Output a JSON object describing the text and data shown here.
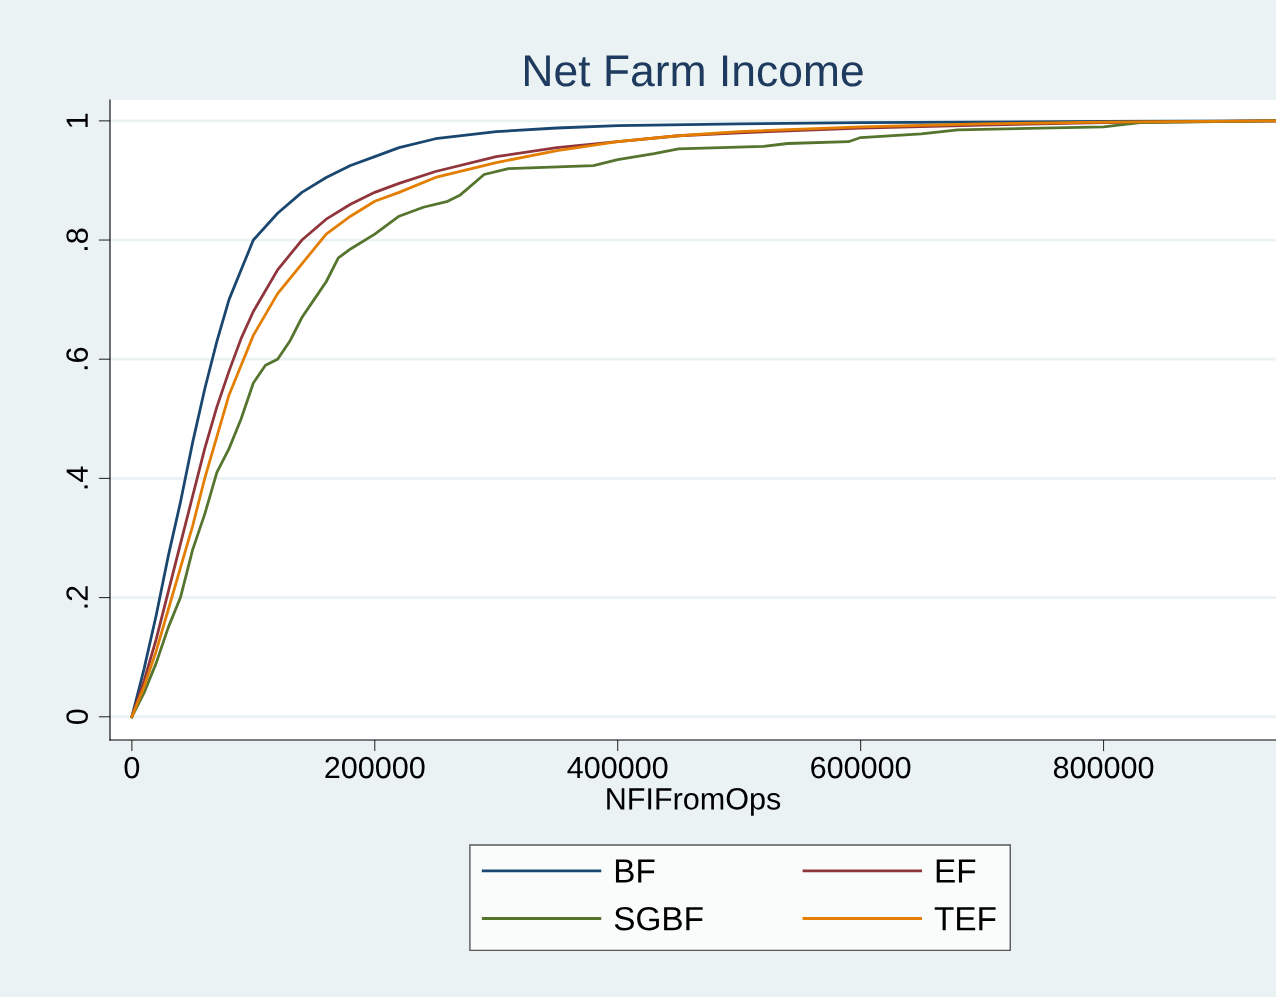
{
  "chart_data": {
    "type": "line",
    "title": "Net Farm Income",
    "xlabel": "NFIFromOps",
    "xlim": [
      -18000,
      942000
    ],
    "ylim": [
      -0.039,
      1.035
    ],
    "xticks": [
      0,
      200000,
      400000,
      600000,
      800000
    ],
    "yticks": [
      {
        "value": 0,
        "label": "0"
      },
      {
        "value": 0.2,
        "label": ".2"
      },
      {
        "value": 0.4,
        "label": ".4"
      },
      {
        "value": 0.6,
        "label": ".6"
      },
      {
        "value": 0.8,
        "label": ".8"
      },
      {
        "value": 1,
        "label": "1"
      }
    ],
    "grid": "y",
    "legend": "bottom",
    "marker": "none",
    "line_style": "solid",
    "series": [
      {
        "name": "BF",
        "color": "#1a476f",
        "x": [
          0,
          10000,
          20000,
          30000,
          40000,
          50000,
          60000,
          70000,
          80000,
          90000,
          100000,
          120000,
          140000,
          160000,
          180000,
          200000,
          220000,
          250000,
          300000,
          350000,
          400000,
          500000,
          600000,
          800000,
          942000
        ],
        "values": [
          0,
          0.08,
          0.17,
          0.27,
          0.36,
          0.46,
          0.55,
          0.63,
          0.7,
          0.75,
          0.8,
          0.845,
          0.88,
          0.905,
          0.925,
          0.94,
          0.955,
          0.97,
          0.982,
          0.988,
          0.992,
          0.995,
          0.997,
          0.999,
          1
        ]
      },
      {
        "name": "EF",
        "color": "#90353b",
        "x": [
          0,
          10000,
          20000,
          30000,
          40000,
          50000,
          60000,
          70000,
          80000,
          90000,
          100000,
          120000,
          140000,
          160000,
          180000,
          200000,
          220000,
          250000,
          300000,
          350000,
          400000,
          450000,
          500000,
          600000,
          700000,
          800000,
          942000
        ],
        "values": [
          0,
          0.06,
          0.13,
          0.21,
          0.29,
          0.37,
          0.45,
          0.52,
          0.58,
          0.635,
          0.68,
          0.75,
          0.8,
          0.835,
          0.86,
          0.88,
          0.895,
          0.915,
          0.94,
          0.955,
          0.965,
          0.975,
          0.98,
          0.988,
          0.993,
          0.997,
          1
        ]
      },
      {
        "name": "SGBF",
        "color": "#55752f",
        "x": [
          0,
          10000,
          20000,
          30000,
          40000,
          50000,
          60000,
          70000,
          80000,
          90000,
          100000,
          110000,
          120000,
          130000,
          140000,
          150000,
          160000,
          170000,
          180000,
          200000,
          220000,
          240000,
          260000,
          270000,
          290000,
          310000,
          380000,
          400000,
          430000,
          450000,
          520000,
          540000,
          590000,
          600000,
          650000,
          680000,
          800000,
          830000,
          942000
        ],
        "values": [
          0,
          0.04,
          0.09,
          0.15,
          0.2,
          0.28,
          0.34,
          0.41,
          0.45,
          0.5,
          0.56,
          0.59,
          0.6,
          0.63,
          0.67,
          0.7,
          0.73,
          0.77,
          0.785,
          0.81,
          0.84,
          0.855,
          0.865,
          0.875,
          0.91,
          0.92,
          0.925,
          0.935,
          0.945,
          0.953,
          0.957,
          0.962,
          0.965,
          0.972,
          0.978,
          0.985,
          0.99,
          0.997,
          1
        ]
      },
      {
        "name": "TEF",
        "color": "#e37e00",
        "x": [
          0,
          10000,
          20000,
          30000,
          40000,
          50000,
          60000,
          70000,
          80000,
          90000,
          100000,
          120000,
          140000,
          160000,
          180000,
          200000,
          220000,
          250000,
          300000,
          350000,
          400000,
          450000,
          500000,
          600000,
          700000,
          800000,
          942000
        ],
        "values": [
          0,
          0.05,
          0.11,
          0.18,
          0.25,
          0.32,
          0.4,
          0.47,
          0.54,
          0.59,
          0.64,
          0.71,
          0.76,
          0.81,
          0.84,
          0.865,
          0.88,
          0.905,
          0.93,
          0.95,
          0.965,
          0.975,
          0.982,
          0.99,
          0.995,
          0.998,
          1
        ]
      }
    ]
  }
}
